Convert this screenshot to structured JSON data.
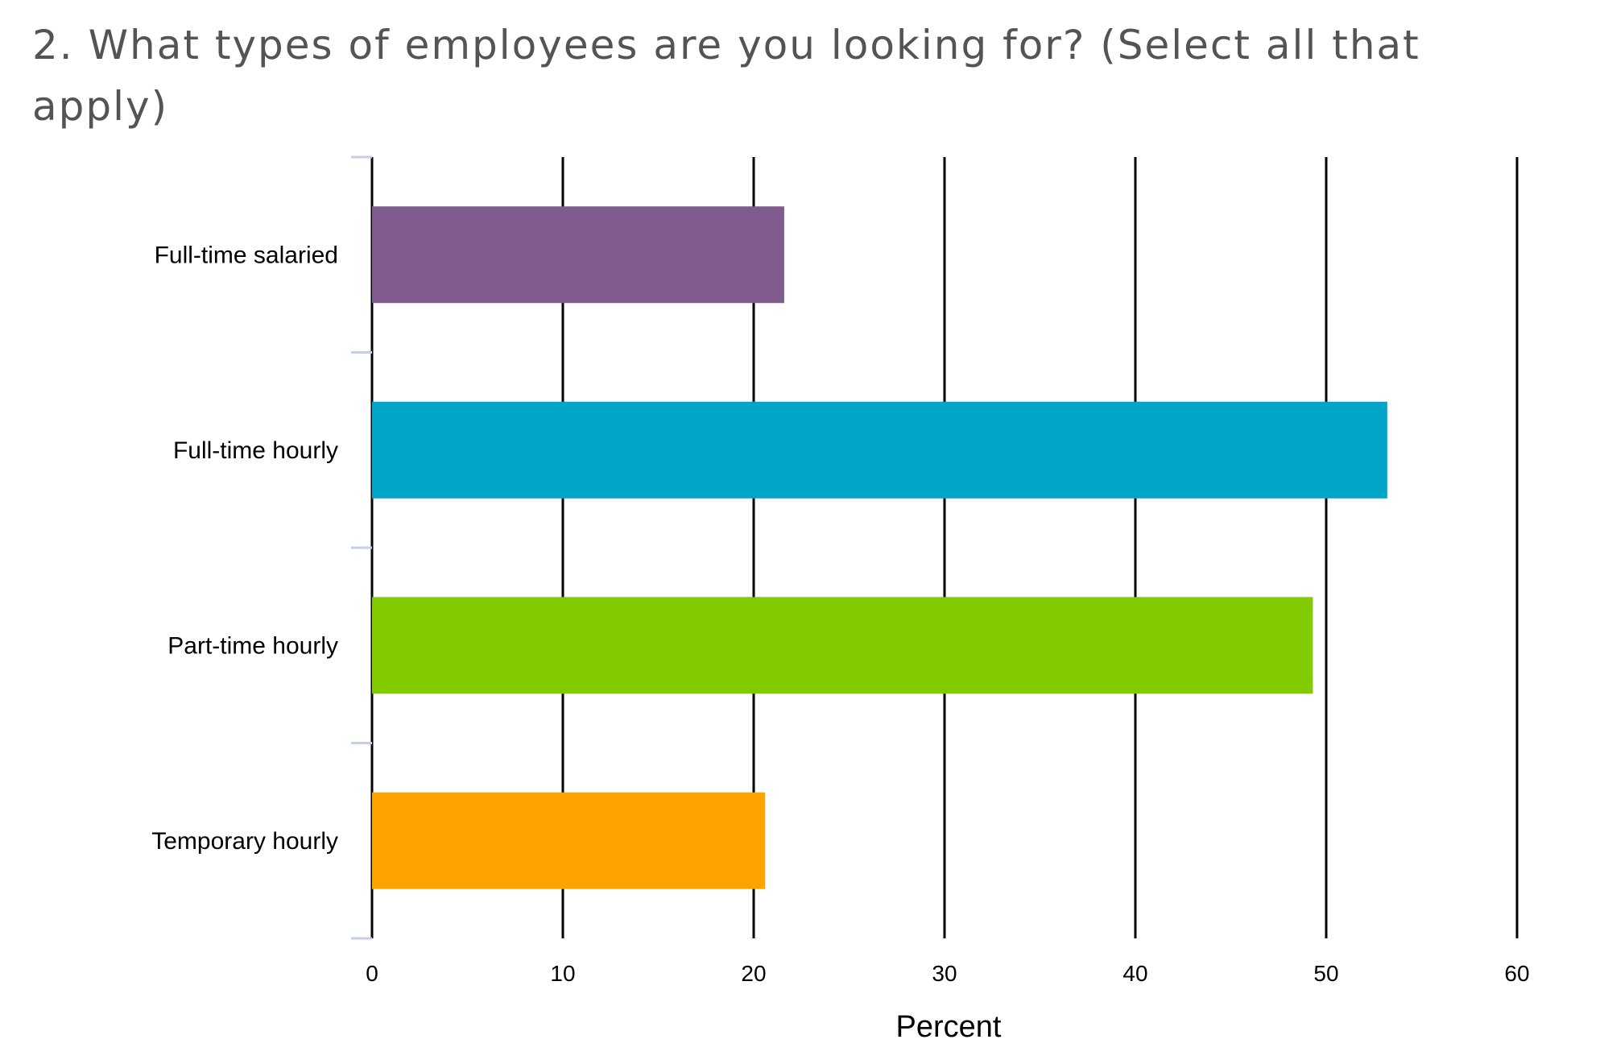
{
  "chart_data": {
    "type": "bar",
    "orientation": "horizontal",
    "title": "2. What types of employees are you looking for? (Select all that apply)",
    "xlabel": "Percent",
    "ylabel": "",
    "xlim": [
      0,
      60
    ],
    "x_ticks": [
      0,
      10,
      20,
      30,
      40,
      50,
      60
    ],
    "grid": "vertical",
    "categories": [
      "Full-time salaried",
      "Full-time hourly",
      "Part-time hourly",
      "Temporary hourly"
    ],
    "values": [
      21.6,
      53.2,
      49.3,
      20.6
    ],
    "colors": [
      "#7f5b8f",
      "#00a5c7",
      "#82cb00",
      "#ffa300"
    ]
  }
}
